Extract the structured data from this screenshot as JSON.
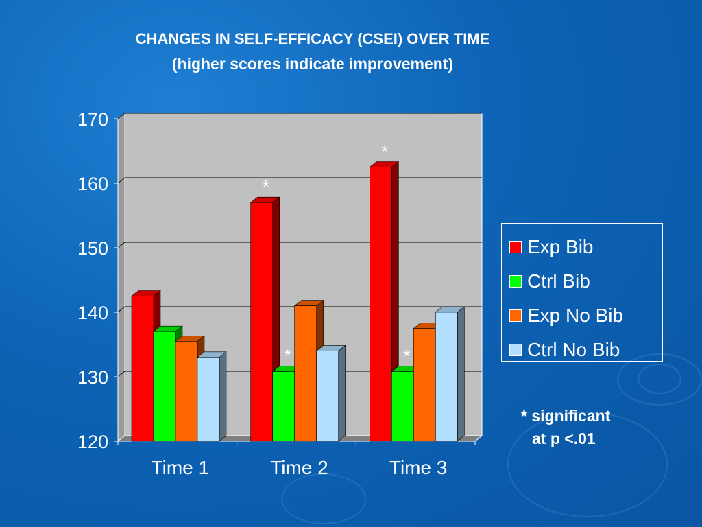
{
  "chart_data": {
    "type": "bar",
    "title": "CHANGES IN SELF-EFFICACY (CSEI) OVER TIME",
    "subtitle": "(higher scores indicate improvement)",
    "categories": [
      "Time 1",
      "Time 2",
      "Time 3"
    ],
    "ylim": [
      120,
      170
    ],
    "yticks": [
      120,
      130,
      140,
      150,
      160,
      170
    ],
    "grid": true,
    "legend_position": "right",
    "series": [
      {
        "name": "Exp Bib",
        "color": "#ff0000",
        "values": [
          142.5,
          157,
          162.5
        ],
        "significant": [
          false,
          true,
          true
        ]
      },
      {
        "name": "Ctrl Bib",
        "color": "#00ff00",
        "values": [
          137,
          130.8,
          130.8
        ],
        "significant": [
          false,
          true,
          true
        ]
      },
      {
        "name": "Exp No Bib",
        "color": "#ff6600",
        "values": [
          135.5,
          141,
          137.5
        ],
        "significant": [
          false,
          false,
          false
        ]
      },
      {
        "name": "Ctrl No Bib",
        "color": "#b3e0ff",
        "values": [
          133,
          134,
          140
        ],
        "significant": [
          false,
          false,
          false
        ]
      }
    ],
    "significance_marker": "*",
    "note_line1": "* significant",
    "note_line2": "at p <.01"
  }
}
